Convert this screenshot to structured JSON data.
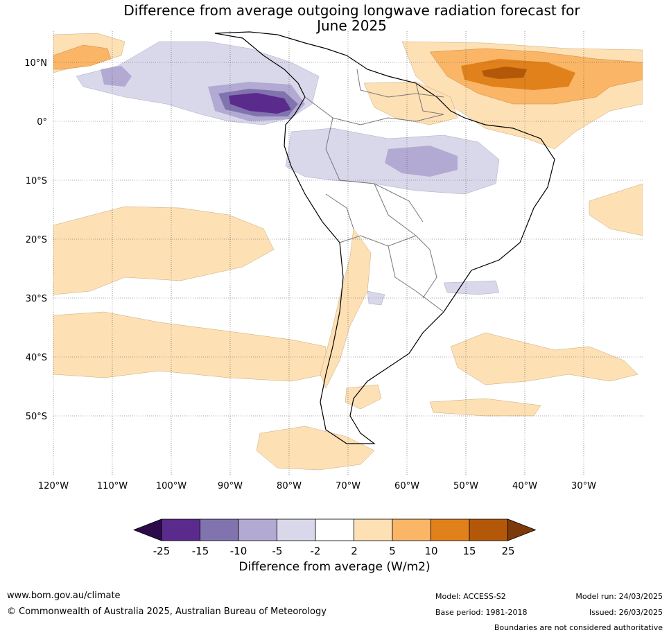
{
  "title_line1": "Difference from average outgoing longwave radiation forecast for",
  "title_line2": "June 2025",
  "lat_labels": [
    "10°N",
    "0°",
    "10°S",
    "20°S",
    "30°S",
    "40°S",
    "50°S"
  ],
  "lon_labels": [
    "120°W",
    "110°W",
    "100°W",
    "90°W",
    "80°W",
    "70°W",
    "60°W",
    "50°W",
    "40°W",
    "30°W"
  ],
  "colorbar": {
    "ticks": [
      "-25",
      "-15",
      "-10",
      "-5",
      "-2",
      "2",
      "5",
      "10",
      "15",
      "25"
    ],
    "colors": [
      "#2d0a4a",
      "#5a2a8c",
      "#8174ae",
      "#b2aad2",
      "#d8d8ea",
      "#ffffff",
      "#fde0b4",
      "#fab566",
      "#e0811c",
      "#b35808",
      "#7c3a0b"
    ],
    "title": "Difference from average (W/m2)"
  },
  "footer": {
    "website": "www.bom.gov.au/climate",
    "copyright": "© Commonwealth of Australia 2025, Australian Bureau of Meteorology",
    "model": "Model: ACCESS-S2",
    "base_period": "Base period: 1981-2018",
    "model_run": "Model run: 24/03/2025",
    "issued": "Issued: 26/03/2025",
    "disclaimer": "Boundaries are not considered authoritative"
  }
}
